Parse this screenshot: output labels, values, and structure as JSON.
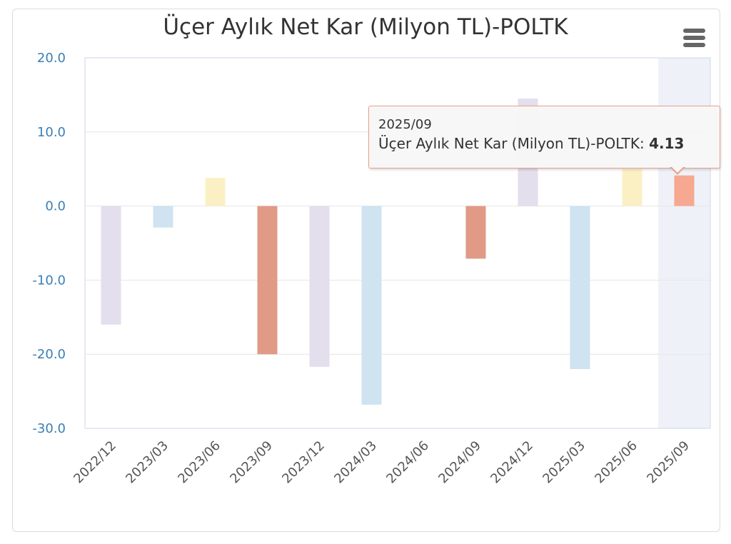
{
  "chart_data": {
    "type": "bar",
    "title": "Üçer Aylık Net Kar (Milyon TL)-POLTK",
    "xlabel": "",
    "ylabel": "",
    "ylim": [
      -30,
      20
    ],
    "yticks": [
      "20.0",
      "10.0",
      "0.0",
      "-10.0",
      "-20.0",
      "-30.0"
    ],
    "categories": [
      "2022/12",
      "2023/03",
      "2023/06",
      "2023/09",
      "2023/12",
      "2024/03",
      "2024/06",
      "2024/09",
      "2024/12",
      "2025/03",
      "2025/06",
      "2025/09"
    ],
    "series": [
      {
        "values": [
          -16.0,
          -2.9,
          3.8,
          -20.0,
          -21.7,
          -26.8,
          0,
          -7.1,
          14.5,
          -22.0,
          5.0,
          4.13
        ],
        "colors": [
          "#e3dfec",
          "#cfe3f1",
          "#fbf0c4",
          "#e09a86",
          "#e3dfec",
          "#cfe3f1",
          "#fbf0c4",
          "#e09a86",
          "#e3dfec",
          "#cfe3f1",
          "#fbf0c4",
          "#f7a890"
        ]
      }
    ],
    "highlighted_category": "2025/09",
    "grid": true
  },
  "tooltip": {
    "date": "2025/09",
    "label": "Üçer Aylık Net Kar (Milyon TL)-POLTK:",
    "value": "4.13"
  },
  "colors": {
    "axis_label": "#3a7fb5",
    "grid": "#e6e6e6",
    "highlight_band": "#eef2f8"
  },
  "menu_icon": "hamburger-icon"
}
